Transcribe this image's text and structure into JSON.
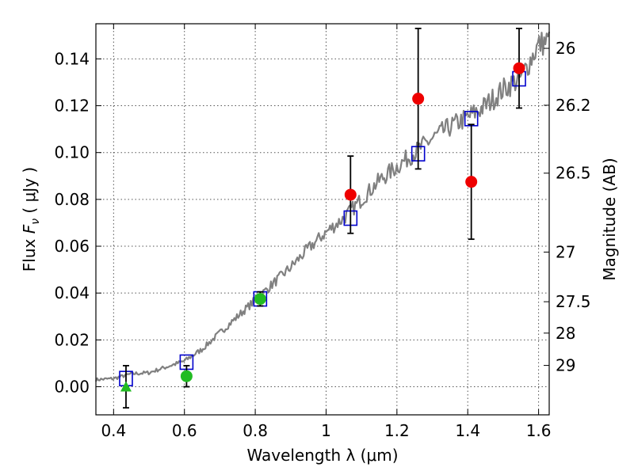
{
  "chart_data": {
    "type": "scatter",
    "xlabel": "Wavelength  λ (μm)",
    "ylabel": "Flux  Fν  ( μJy )",
    "ylabel_parts": {
      "prefix": "Flux ",
      "symbol": "F",
      "subscript": "ν",
      "suffix": "  ( μJy )"
    },
    "y2label": "Magnitude (AB)",
    "xlim": [
      0.35,
      1.63
    ],
    "ylim": [
      -0.012,
      0.155
    ],
    "grid": true,
    "x_ticks": [
      {
        "value": 0.4,
        "label": "0.4"
      },
      {
        "value": 0.6,
        "label": "0.6"
      },
      {
        "value": 0.8,
        "label": "0.8"
      },
      {
        "value": 1.0,
        "label": "1"
      },
      {
        "value": 1.2,
        "label": "1.2"
      },
      {
        "value": 1.4,
        "label": "1.4"
      },
      {
        "value": 1.6,
        "label": "1.6"
      }
    ],
    "y_ticks": [
      {
        "value": 0.0,
        "label": "0.00"
      },
      {
        "value": 0.02,
        "label": "0.02"
      },
      {
        "value": 0.04,
        "label": "0.04"
      },
      {
        "value": 0.06,
        "label": "0.06"
      },
      {
        "value": 0.08,
        "label": "0.08"
      },
      {
        "value": 0.1,
        "label": "0.10"
      },
      {
        "value": 0.12,
        "label": "0.12"
      },
      {
        "value": 0.14,
        "label": "0.14"
      }
    ],
    "y2_ticks": [
      {
        "flux": 0.1445,
        "label": "26"
      },
      {
        "flux": 0.1202,
        "label": "26.2"
      },
      {
        "flux": 0.0912,
        "label": "26.5"
      },
      {
        "flux": 0.0575,
        "label": "27"
      },
      {
        "flux": 0.0363,
        "label": "27.5"
      },
      {
        "flux": 0.0229,
        "label": "28"
      },
      {
        "flux": 0.0091,
        "label": "29"
      }
    ],
    "series": [
      {
        "name": "model-spectrum",
        "kind": "line",
        "color": "#808080",
        "anchors": [
          [
            0.35,
            0.003
          ],
          [
            0.4,
            0.0035
          ],
          [
            0.45,
            0.0055
          ],
          [
            0.5,
            0.006
          ],
          [
            0.55,
            0.0085
          ],
          [
            0.6,
            0.011
          ],
          [
            0.65,
            0.016
          ],
          [
            0.7,
            0.023
          ],
          [
            0.75,
            0.03
          ],
          [
            0.8,
            0.037
          ],
          [
            0.85,
            0.044
          ],
          [
            0.9,
            0.051
          ],
          [
            0.95,
            0.059
          ],
          [
            1.0,
            0.066
          ],
          [
            1.05,
            0.072
          ],
          [
            1.1,
            0.08
          ],
          [
            1.15,
            0.088
          ],
          [
            1.2,
            0.094
          ],
          [
            1.25,
            0.1
          ],
          [
            1.3,
            0.106
          ],
          [
            1.35,
            0.111
          ],
          [
            1.4,
            0.115
          ],
          [
            1.45,
            0.12
          ],
          [
            1.5,
            0.127
          ],
          [
            1.55,
            0.132
          ],
          [
            1.6,
            0.146
          ],
          [
            1.63,
            0.148
          ]
        ]
      },
      {
        "name": "model-band-flux",
        "kind": "square",
        "color": "#0000cc",
        "points": [
          [
            0.435,
            0.0035
          ],
          [
            0.606,
            0.0105
          ],
          [
            0.814,
            0.0375
          ],
          [
            1.069,
            0.072
          ],
          [
            1.26,
            0.0995
          ],
          [
            1.41,
            0.1145
          ],
          [
            1.545,
            0.1315
          ]
        ]
      },
      {
        "name": "optical-photometry",
        "kind": "circle",
        "color": "#22bb22",
        "points": [
          {
            "x": 0.606,
            "y": 0.0045,
            "err": 0.0045
          },
          {
            "x": 0.814,
            "y": 0.0375,
            "err": 0.003
          }
        ]
      },
      {
        "name": "optical-upper-limit",
        "kind": "triangle",
        "color": "#22bb22",
        "points": [
          {
            "x": 0.435,
            "y": 0.0,
            "err": 0.009
          }
        ]
      },
      {
        "name": "nir-photometry",
        "kind": "circle",
        "color": "#ee0000",
        "points": [
          {
            "x": 1.069,
            "y": 0.082,
            "err": 0.0165
          },
          {
            "x": 1.26,
            "y": 0.123,
            "err": 0.03
          },
          {
            "x": 1.41,
            "y": 0.0875,
            "err": 0.0245
          },
          {
            "x": 1.545,
            "y": 0.136,
            "err": 0.017
          }
        ]
      }
    ]
  }
}
